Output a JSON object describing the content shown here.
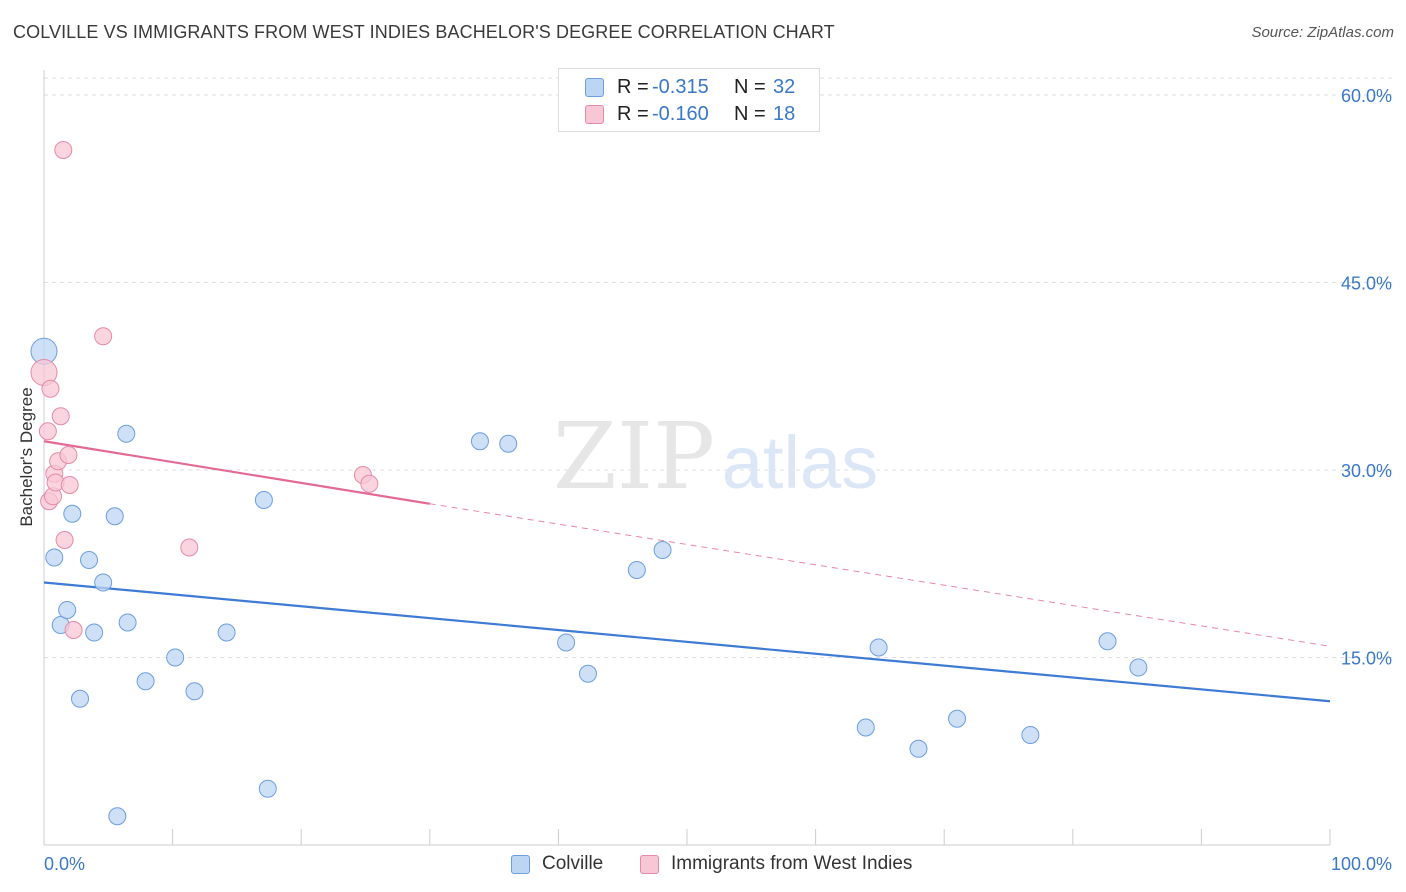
{
  "header": {
    "title": "COLVILLE VS IMMIGRANTS FROM WEST INDIES BACHELOR'S DEGREE CORRELATION CHART",
    "source": "Source: ZipAtlas.com"
  },
  "watermark": {
    "part1": "ZIP",
    "part2": "atlas"
  },
  "stats": [
    {
      "r_label": "R =",
      "r_value": "-0.315",
      "n_label": "N =",
      "n_value": "32"
    },
    {
      "r_label": "R =",
      "r_value": "-0.160",
      "n_label": "N =",
      "n_value": "18"
    }
  ],
  "legend": [
    {
      "label": "Colville"
    },
    {
      "label": "Immigrants from West Indies"
    }
  ],
  "colors": {
    "series1_fill": "#bcd5f3",
    "series1_stroke": "#6d9ee0",
    "series1_line": "#3d7bd4",
    "series2_fill": "#f8c7d5",
    "series2_stroke": "#e58aa6",
    "series2_line": "#e36a93",
    "axis_text": "#3a78c8",
    "grid": "#dddddd"
  },
  "chart_data": {
    "type": "scatter",
    "title": "COLVILLE VS IMMIGRANTS FROM WEST INDIES BACHELOR'S DEGREE CORRELATION CHART",
    "xlabel": "",
    "ylabel": "Bachelor's Degree",
    "x_tick_labels": [
      "0.0%",
      "100.0%"
    ],
    "y_tick_labels": [
      "15.0%",
      "30.0%",
      "45.0%",
      "60.0%"
    ],
    "y_ticks": [
      15,
      30,
      45,
      60
    ],
    "xlim": [
      0,
      100
    ],
    "ylim": [
      0,
      62
    ],
    "grid": true,
    "legend_position": "bottom",
    "series": [
      {
        "name": "Colville",
        "points": [
          {
            "x": 0.0,
            "y": 39.5,
            "big": true
          },
          {
            "x": 0.8,
            "y": 23.0
          },
          {
            "x": 1.3,
            "y": 17.6
          },
          {
            "x": 1.8,
            "y": 18.8
          },
          {
            "x": 2.2,
            "y": 26.5
          },
          {
            "x": 2.8,
            "y": 11.7
          },
          {
            "x": 3.5,
            "y": 22.8
          },
          {
            "x": 3.9,
            "y": 17.0
          },
          {
            "x": 4.6,
            "y": 21.0
          },
          {
            "x": 5.5,
            "y": 26.3
          },
          {
            "x": 5.7,
            "y": 2.3
          },
          {
            "x": 6.4,
            "y": 32.9
          },
          {
            "x": 6.5,
            "y": 17.8
          },
          {
            "x": 7.9,
            "y": 13.1
          },
          {
            "x": 10.2,
            "y": 15.0
          },
          {
            "x": 11.7,
            "y": 12.3
          },
          {
            "x": 14.2,
            "y": 17.0
          },
          {
            "x": 17.1,
            "y": 27.6
          },
          {
            "x": 17.4,
            "y": 4.5
          },
          {
            "x": 33.9,
            "y": 32.3
          },
          {
            "x": 36.1,
            "y": 32.1
          },
          {
            "x": 40.6,
            "y": 16.2
          },
          {
            "x": 42.3,
            "y": 13.7
          },
          {
            "x": 46.1,
            "y": 22.0
          },
          {
            "x": 48.1,
            "y": 23.6
          },
          {
            "x": 63.9,
            "y": 9.4
          },
          {
            "x": 64.9,
            "y": 15.8
          },
          {
            "x": 68.0,
            "y": 7.7
          },
          {
            "x": 71.0,
            "y": 10.1
          },
          {
            "x": 76.7,
            "y": 8.8
          },
          {
            "x": 82.7,
            "y": 16.3
          },
          {
            "x": 85.1,
            "y": 14.2
          }
        ],
        "trend": {
          "x": [
            0,
            100
          ],
          "y": [
            21.0,
            11.5
          ]
        }
      },
      {
        "name": "Immigrants from West Indies",
        "points": [
          {
            "x": 0.0,
            "y": 37.8,
            "big": true
          },
          {
            "x": 0.3,
            "y": 33.1
          },
          {
            "x": 0.4,
            "y": 27.5
          },
          {
            "x": 0.5,
            "y": 36.5
          },
          {
            "x": 0.7,
            "y": 27.9
          },
          {
            "x": 0.8,
            "y": 29.7
          },
          {
            "x": 0.9,
            "y": 29.0
          },
          {
            "x": 1.1,
            "y": 30.7
          },
          {
            "x": 1.3,
            "y": 34.3
          },
          {
            "x": 1.5,
            "y": 55.6
          },
          {
            "x": 1.6,
            "y": 24.4
          },
          {
            "x": 1.9,
            "y": 31.2
          },
          {
            "x": 2.0,
            "y": 28.8
          },
          {
            "x": 2.3,
            "y": 17.2
          },
          {
            "x": 4.6,
            "y": 40.7
          },
          {
            "x": 11.3,
            "y": 23.8
          },
          {
            "x": 24.8,
            "y": 29.6
          },
          {
            "x": 25.3,
            "y": 28.9
          }
        ],
        "trend": {
          "x": [
            0,
            30
          ],
          "y": [
            32.3,
            27.3
          ],
          "dashed_extension": {
            "x": [
              30,
              100
            ],
            "y": [
              27.3,
              15.9
            ]
          }
        }
      }
    ]
  }
}
